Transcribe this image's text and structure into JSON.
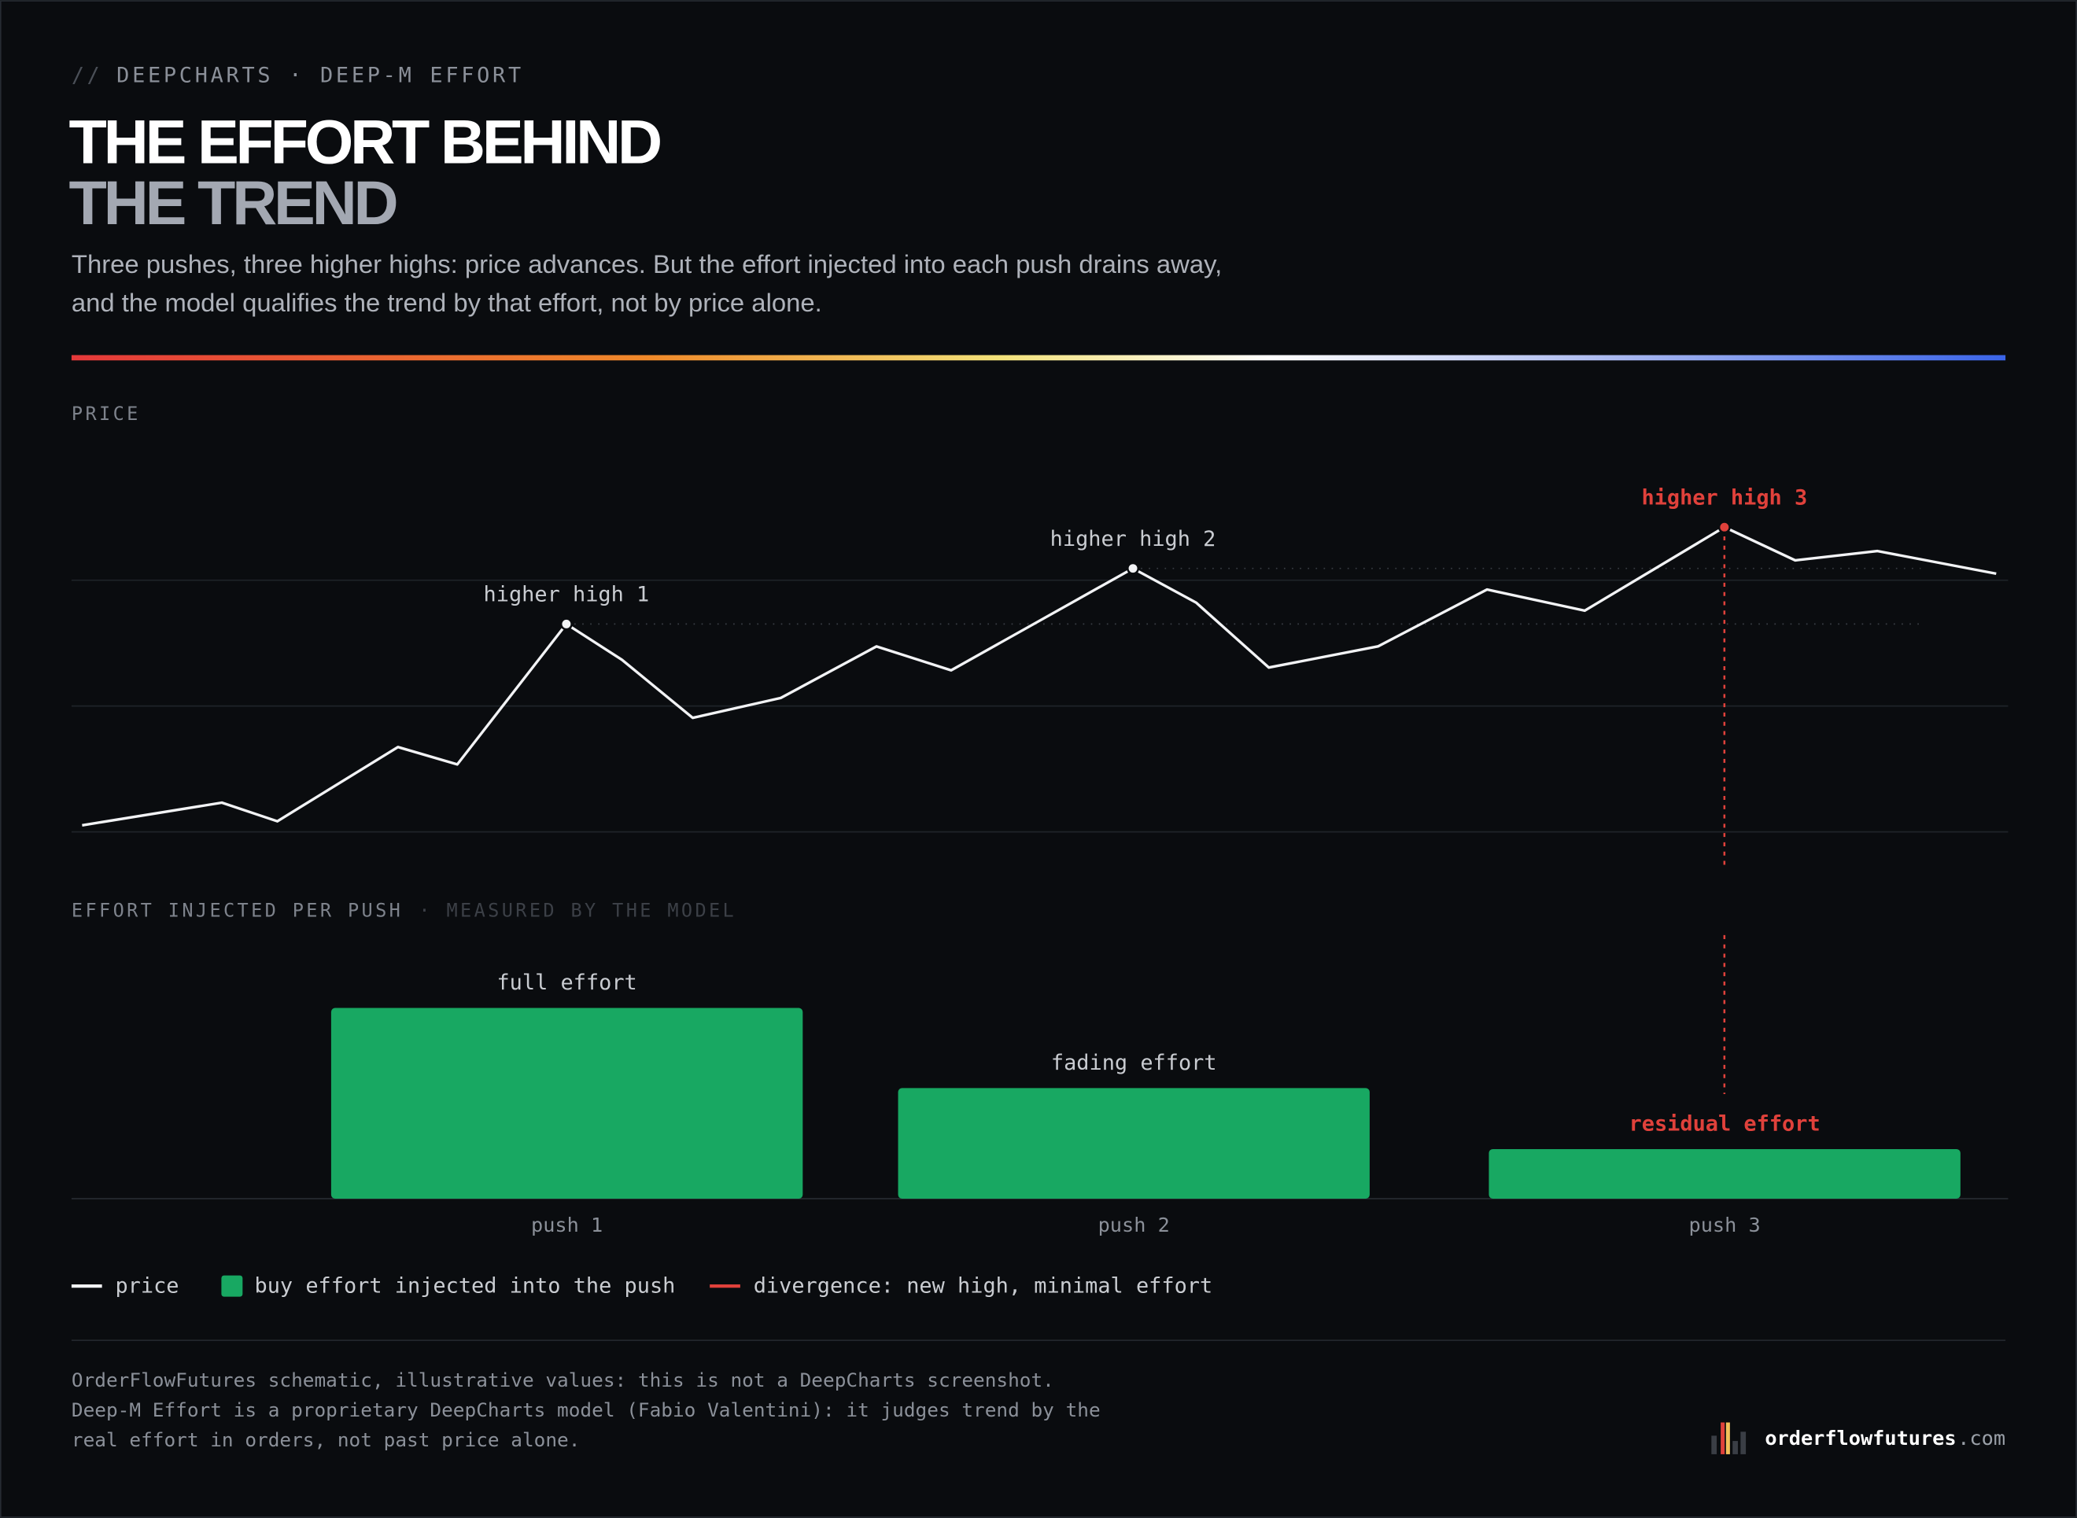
{
  "header": {
    "kicker_prefix": "//",
    "kicker": "DEEPCHARTS · DEEP-M EFFORT",
    "title_line1": "THE EFFORT BEHIND",
    "title_line2": "THE TREND",
    "subtitle_line1": "Three pushes, three higher highs: price advances. But the effort injected into each push drains away,",
    "subtitle_line2": "and the model qualifies the trend by that effort, not by price alone."
  },
  "chart_data": [
    {
      "type": "line",
      "title": "PRICE",
      "color": "#f2f3f5",
      "highlight_color": "#e0413b",
      "grid": true,
      "x": [
        0,
        7.3,
        10.2,
        16.5,
        19.6,
        25.3,
        28.2,
        31.9,
        36.5,
        41.5,
        45.4,
        54.9,
        58.2,
        62.0,
        67.7,
        73.4,
        78.5,
        85.8,
        89.5,
        93.8,
        100
      ],
      "values": [
        2.6,
        11.6,
        4.2,
        33.7,
        26.8,
        82.6,
        68.4,
        45.3,
        53.2,
        73.7,
        64.2,
        104.7,
        91.1,
        65.3,
        73.7,
        96.3,
        87.9,
        121.1,
        107.9,
        111.6,
        102.6
      ],
      "xlim": [
        0,
        100
      ],
      "ylim": [
        0,
        150
      ],
      "yticks": [
        0,
        50,
        100
      ],
      "annotations": [
        "higher high 1",
        "higher high 2",
        "higher high 3"
      ]
    },
    {
      "type": "bar",
      "title": "EFFORT INJECTED PER PUSH",
      "subtitle": "· MEASURED BY THE MODEL",
      "color": "#18a862",
      "highlight_color": "#e0413b",
      "categories": [
        "push 1",
        "push 2",
        "push 3"
      ],
      "values": [
        100,
        58,
        26
      ],
      "ylim": [
        0,
        100
      ],
      "annotations": [
        "full effort",
        "fading effort",
        "residual effort"
      ]
    }
  ],
  "legend": [
    {
      "name": "price",
      "color": "#f2f3f5",
      "shape": "line"
    },
    {
      "name": "buy effort injected into the push",
      "color": "#18a862",
      "shape": "square"
    },
    {
      "name": "divergence: new high, minimal effort",
      "color": "#e0413b",
      "shape": "line"
    }
  ],
  "footer": {
    "note_lines": [
      "OrderFlowFutures schematic, illustrative values: this is not a DeepCharts screenshot.",
      "Deep-M Effort is a proprietary DeepCharts model (Fabio Valentini): it judges trend by the",
      "real effort in orders, not past price alone."
    ],
    "brand": "orderflowfutures",
    "brand_suffix": ".com"
  }
}
